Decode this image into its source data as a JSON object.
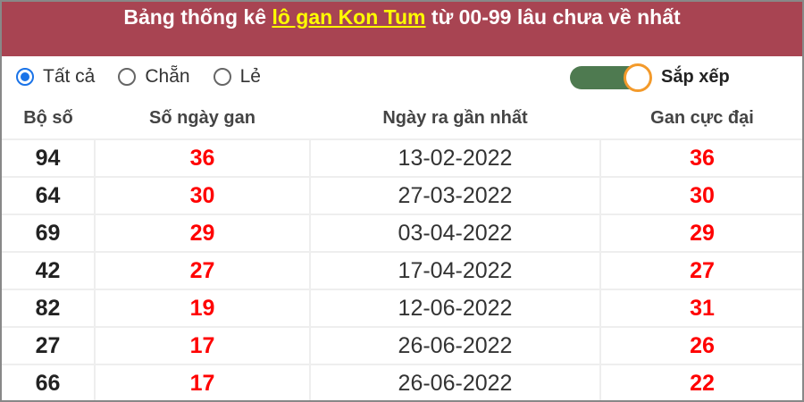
{
  "header": {
    "title_prefix": "Bảng thống kê ",
    "title_link": "lô gan Kon Tum",
    "title_suffix": " từ 00-99 lâu chưa về nhất"
  },
  "filters": {
    "options": [
      {
        "label": "Tất cả",
        "checked": true
      },
      {
        "label": "Chẵn",
        "checked": false
      },
      {
        "label": "Lẻ",
        "checked": false
      }
    ],
    "sort_label": "Sắp xếp",
    "sort_on": true
  },
  "table": {
    "columns": [
      "Bộ số",
      "Số ngày gan",
      "Ngày ra gần nhất",
      "Gan cực đại"
    ],
    "rows": [
      [
        "94",
        "36",
        "13-02-2022",
        "36"
      ],
      [
        "64",
        "30",
        "27-03-2022",
        "30"
      ],
      [
        "69",
        "29",
        "03-04-2022",
        "29"
      ],
      [
        "42",
        "27",
        "17-04-2022",
        "27"
      ],
      [
        "82",
        "19",
        "12-06-2022",
        "31"
      ],
      [
        "27",
        "17",
        "26-06-2022",
        "26"
      ],
      [
        "66",
        "17",
        "26-06-2022",
        "22"
      ]
    ]
  },
  "colors": {
    "header_bg": "#a84452",
    "link": "#ffff00",
    "accent_red": "#ff0000",
    "toggle": "#4e7a50"
  }
}
